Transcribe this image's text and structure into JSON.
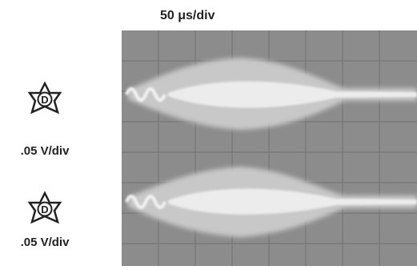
{
  "header": {
    "timebase": "50 μs/div"
  },
  "channels": [
    {
      "badge": "D",
      "scale": ".05 V/div"
    },
    {
      "badge": "D",
      "scale": ".05 V/div"
    }
  ]
}
